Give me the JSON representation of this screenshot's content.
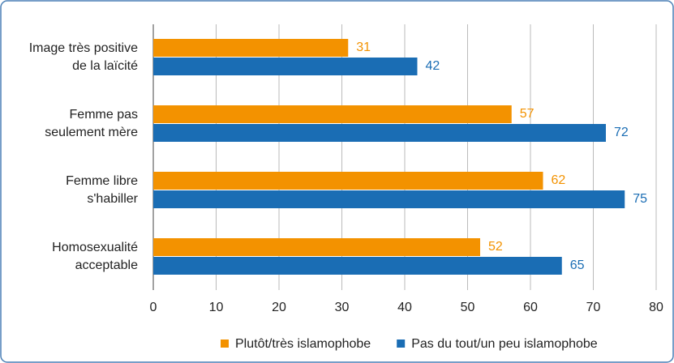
{
  "chart_data": {
    "type": "barh",
    "categories": [
      [
        "Image très positive",
        "de la laïcité"
      ],
      [
        "Femme pas",
        "seulement mère"
      ],
      [
        "Femme libre",
        "s'habiller"
      ],
      [
        "Homosexualité",
        "acceptable"
      ]
    ],
    "series": [
      {
        "name": "Plutôt/très islamophobe",
        "color": "#f39200",
        "values": [
          31,
          57,
          62,
          52
        ]
      },
      {
        "name": "Pas du tout/un peu islamophobe",
        "color": "#1a6db4",
        "values": [
          42,
          72,
          75,
          65
        ]
      }
    ],
    "xlim": [
      0,
      80
    ],
    "xticks": [
      0,
      10,
      20,
      30,
      40,
      50,
      60,
      70,
      80
    ],
    "grid": true,
    "legend": "bottom"
  }
}
